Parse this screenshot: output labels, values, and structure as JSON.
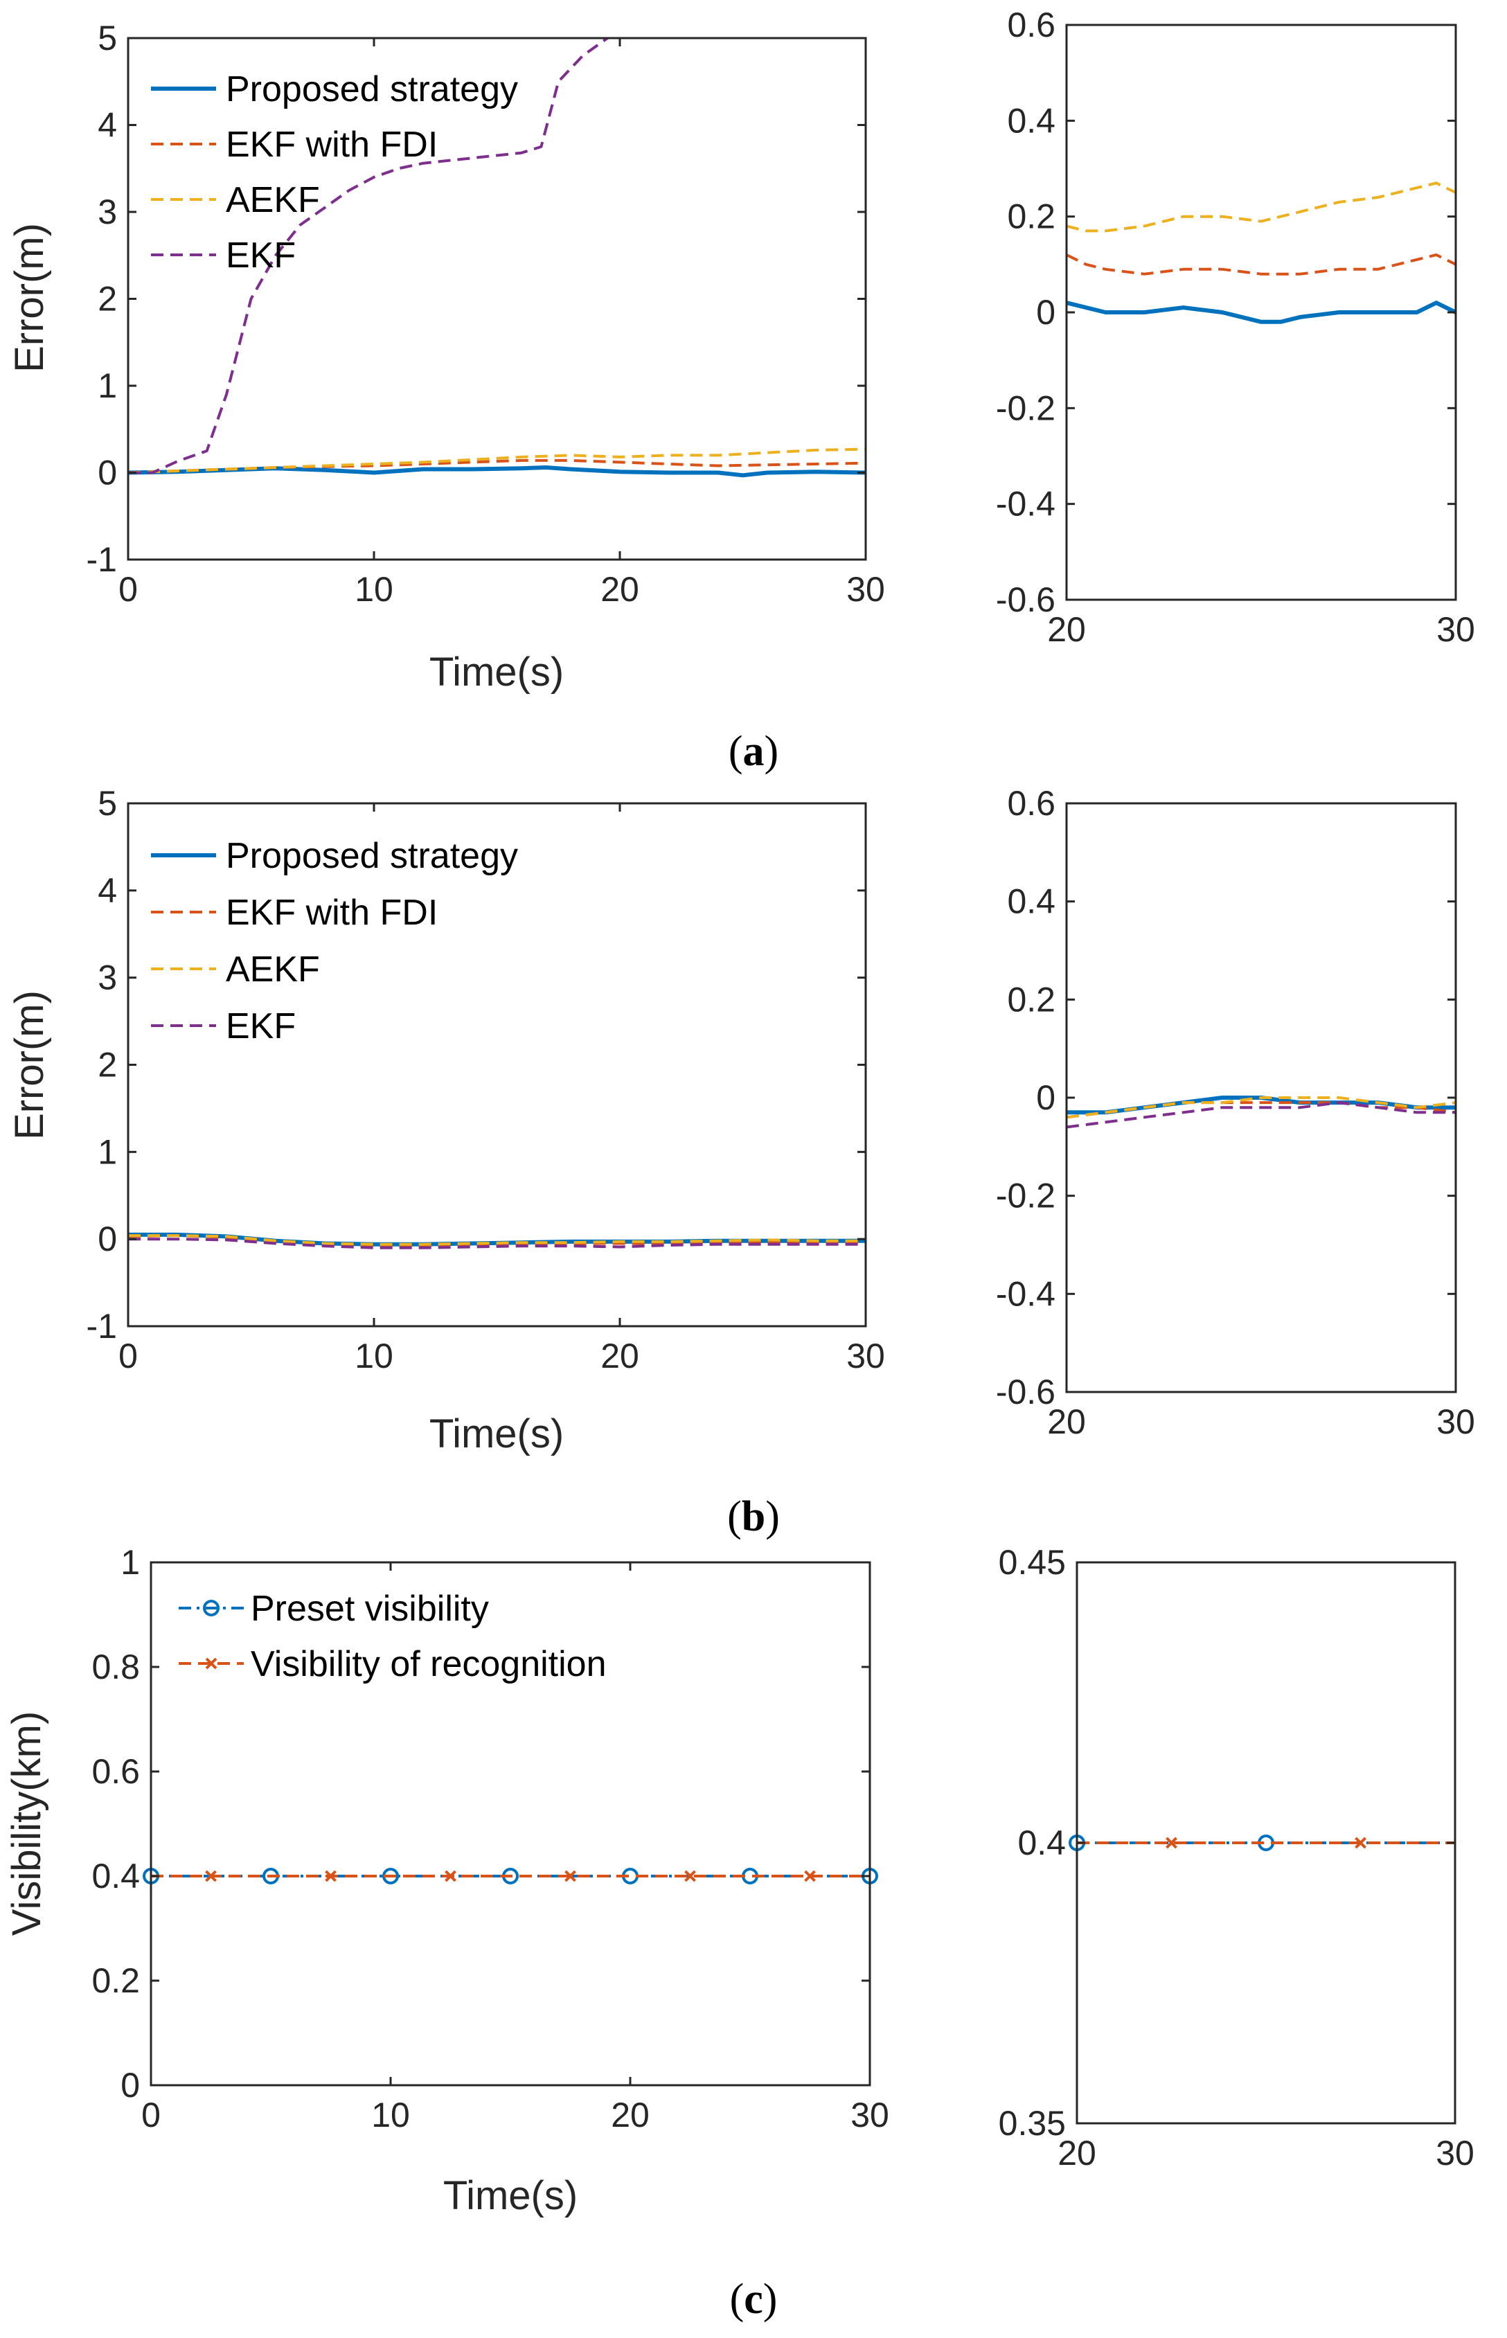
{
  "colors": {
    "proposed": "#0072BD",
    "ekf_fdi": "#D95319",
    "aekf": "#EDB120",
    "ekf": "#7E2F8E",
    "axes": "#262626"
  },
  "legend": {
    "proposed": "Proposed strategy",
    "ekf_fdi": "EKF with FDI",
    "aekf": "AEKF",
    "ekf": "EKF",
    "preset": "Preset visibility",
    "recognition": "Visibility of recognition"
  },
  "captions": {
    "a": [
      "(",
      "a",
      ")"
    ],
    "b": [
      "(",
      "b",
      ")"
    ],
    "c": [
      "(",
      "c",
      ")"
    ]
  },
  "chart_data": [
    {
      "id": "a-main",
      "type": "line",
      "xlabel": "Time(s)",
      "ylabel": "Error(m)",
      "xlim": [
        0,
        30
      ],
      "ylim": [
        -1,
        5
      ],
      "xticks": [
        0,
        10,
        20,
        30
      ],
      "yticks": [
        -1,
        0,
        1,
        2,
        3,
        4,
        5
      ],
      "xtick_labels": [
        "0",
        "10",
        "20",
        "30"
      ],
      "ytick_labels": [
        "-1",
        "0",
        "1",
        "2",
        "3",
        "4",
        "5"
      ],
      "legend": "top-left",
      "series": [
        {
          "name": "Proposed strategy",
          "key": "proposed",
          "style": "solid",
          "x": [
            0,
            2,
            4,
            6,
            8,
            10,
            12,
            14,
            16,
            17,
            18,
            20,
            22,
            24,
            25,
            26,
            28,
            30
          ],
          "y": [
            0,
            0.01,
            0.03,
            0.05,
            0.03,
            0.0,
            0.04,
            0.04,
            0.05,
            0.06,
            0.04,
            0.01,
            0.0,
            0.0,
            -0.03,
            0.0,
            0.01,
            0.0
          ]
        },
        {
          "name": "EKF with FDI",
          "key": "ekf_fdi",
          "style": "dash",
          "x": [
            0,
            2,
            4,
            6,
            8,
            10,
            12,
            14,
            16,
            18,
            20,
            22,
            24,
            26,
            28,
            30
          ],
          "y": [
            0,
            0.02,
            0.04,
            0.06,
            0.07,
            0.08,
            0.1,
            0.12,
            0.14,
            0.14,
            0.12,
            0.1,
            0.08,
            0.09,
            0.1,
            0.11
          ]
        },
        {
          "name": "AEKF",
          "key": "aekf",
          "style": "dash",
          "x": [
            0,
            2,
            4,
            6,
            8,
            10,
            12,
            14,
            16,
            18,
            20,
            22,
            24,
            26,
            28,
            30
          ],
          "y": [
            0,
            0.02,
            0.04,
            0.06,
            0.08,
            0.1,
            0.12,
            0.15,
            0.18,
            0.2,
            0.18,
            0.2,
            0.2,
            0.23,
            0.26,
            0.27
          ]
        },
        {
          "name": "EKF",
          "key": "ekf",
          "style": "dash",
          "x": [
            0,
            1,
            2,
            3.2,
            4,
            5,
            6,
            7,
            8,
            9,
            10,
            11,
            12,
            14,
            16,
            16.8,
            17.5,
            18.5,
            19.5
          ],
          "y": [
            0,
            0.0,
            0.13,
            0.25,
            0.9,
            2.0,
            2.5,
            2.85,
            3.05,
            3.25,
            3.4,
            3.5,
            3.56,
            3.62,
            3.68,
            3.75,
            4.5,
            4.8,
            5.0
          ]
        }
      ]
    },
    {
      "id": "a-zoom",
      "type": "line",
      "xlim": [
        20,
        30
      ],
      "ylim": [
        -0.6,
        0.6
      ],
      "xticks": [
        20,
        30
      ],
      "yticks": [
        -0.6,
        -0.4,
        -0.2,
        0,
        0.2,
        0.4,
        0.6
      ],
      "xtick_labels": [
        "20",
        "30"
      ],
      "ytick_labels": [
        "-0.6",
        "-0.4",
        "-0.2",
        "0",
        "0.2",
        "0.4",
        "0.6"
      ],
      "series": [
        {
          "name": "Proposed strategy",
          "key": "proposed",
          "style": "solid",
          "x": [
            20,
            20.5,
            21,
            22,
            23,
            24,
            25,
            25.5,
            26,
            27,
            28,
            29,
            29.5,
            30
          ],
          "y": [
            0.02,
            0.01,
            0.0,
            0.0,
            0.01,
            0.0,
            -0.02,
            -0.02,
            -0.01,
            0.0,
            0.0,
            0.0,
            0.02,
            0.0
          ]
        },
        {
          "name": "EKF with FDI",
          "key": "ekf_fdi",
          "style": "dash",
          "x": [
            20,
            20.5,
            21,
            22,
            23,
            24,
            25,
            26,
            27,
            28,
            29,
            29.5,
            30
          ],
          "y": [
            0.12,
            0.1,
            0.09,
            0.08,
            0.09,
            0.09,
            0.08,
            0.08,
            0.09,
            0.09,
            0.11,
            0.12,
            0.1
          ]
        },
        {
          "name": "AEKF",
          "key": "aekf",
          "style": "dash",
          "x": [
            20,
            20.5,
            21,
            22,
            23,
            24,
            25,
            26,
            27,
            28,
            29,
            29.5,
            30
          ],
          "y": [
            0.18,
            0.17,
            0.17,
            0.18,
            0.2,
            0.2,
            0.19,
            0.21,
            0.23,
            0.24,
            0.26,
            0.27,
            0.25
          ]
        }
      ]
    },
    {
      "id": "b-main",
      "type": "line",
      "xlabel": "Time(s)",
      "ylabel": "Error(m)",
      "xlim": [
        0,
        30
      ],
      "ylim": [
        -1,
        5
      ],
      "xticks": [
        0,
        10,
        20,
        30
      ],
      "yticks": [
        -1,
        0,
        1,
        2,
        3,
        4,
        5
      ],
      "xtick_labels": [
        "0",
        "10",
        "20",
        "30"
      ],
      "ytick_labels": [
        "-1",
        "0",
        "1",
        "2",
        "3",
        "4",
        "5"
      ],
      "legend": "top-left",
      "series": [
        {
          "name": "Proposed strategy",
          "key": "proposed",
          "style": "solid",
          "x": [
            0,
            2,
            4,
            6,
            8,
            10,
            12,
            14,
            16,
            18,
            20,
            22,
            24,
            26,
            28,
            30
          ],
          "y": [
            0.05,
            0.05,
            0.03,
            -0.02,
            -0.05,
            -0.06,
            -0.06,
            -0.05,
            -0.04,
            -0.03,
            -0.03,
            -0.03,
            -0.02,
            -0.02,
            -0.02,
            -0.02
          ]
        },
        {
          "name": "EKF with FDI",
          "key": "ekf_fdi",
          "style": "dash",
          "x": [
            0,
            2,
            4,
            6,
            8,
            10,
            12,
            14,
            16,
            18,
            20,
            22,
            24,
            26,
            28,
            30
          ],
          "y": [
            0.03,
            0.04,
            0.02,
            -0.03,
            -0.06,
            -0.07,
            -0.07,
            -0.06,
            -0.05,
            -0.05,
            -0.05,
            -0.05,
            -0.04,
            -0.04,
            -0.04,
            -0.04
          ]
        },
        {
          "name": "AEKF",
          "key": "aekf",
          "style": "dash",
          "x": [
            0,
            2,
            4,
            6,
            8,
            10,
            12,
            14,
            16,
            18,
            20,
            22,
            24,
            26,
            28,
            30
          ],
          "y": [
            0.04,
            0.04,
            0.03,
            -0.02,
            -0.05,
            -0.06,
            -0.06,
            -0.05,
            -0.04,
            -0.04,
            -0.03,
            -0.03,
            -0.02,
            -0.01,
            -0.02,
            -0.02
          ]
        },
        {
          "name": "EKF",
          "key": "ekf",
          "style": "dash",
          "x": [
            0,
            2,
            4,
            6,
            8,
            10,
            12,
            14,
            16,
            18,
            20,
            22,
            24,
            26,
            28,
            30
          ],
          "y": [
            0.0,
            0.0,
            -0.01,
            -0.05,
            -0.08,
            -0.1,
            -0.1,
            -0.09,
            -0.08,
            -0.08,
            -0.09,
            -0.07,
            -0.06,
            -0.06,
            -0.06,
            -0.06
          ]
        }
      ]
    },
    {
      "id": "b-zoom",
      "type": "line",
      "xlim": [
        20,
        30
      ],
      "ylim": [
        -0.6,
        0.6
      ],
      "xticks": [
        20,
        30
      ],
      "yticks": [
        -0.6,
        -0.4,
        -0.2,
        0,
        0.2,
        0.4,
        0.6
      ],
      "xtick_labels": [
        "20",
        "30"
      ],
      "ytick_labels": [
        "-0.6",
        "-0.4",
        "-0.2",
        "0",
        "0.2",
        "0.4",
        "0.6"
      ],
      "series": [
        {
          "name": "Proposed strategy",
          "key": "proposed",
          "style": "solid",
          "x": [
            20,
            21,
            22,
            23,
            24,
            25,
            26,
            27,
            28,
            29,
            30
          ],
          "y": [
            -0.03,
            -0.03,
            -0.02,
            -0.01,
            0.0,
            0.0,
            -0.01,
            -0.01,
            -0.01,
            -0.02,
            -0.02
          ]
        },
        {
          "name": "EKF with FDI",
          "key": "ekf_fdi",
          "style": "dash",
          "x": [
            20,
            21,
            22,
            23,
            24,
            25,
            26,
            27,
            28,
            29,
            30
          ],
          "y": [
            -0.04,
            -0.03,
            -0.02,
            -0.01,
            -0.01,
            -0.01,
            -0.01,
            -0.01,
            -0.02,
            -0.02,
            -0.03
          ]
        },
        {
          "name": "AEKF",
          "key": "aekf",
          "style": "dash",
          "x": [
            20,
            21,
            22,
            23,
            24,
            25,
            26,
            27,
            28,
            29,
            30
          ],
          "y": [
            -0.04,
            -0.03,
            -0.02,
            -0.01,
            -0.01,
            0.0,
            0.0,
            0.0,
            -0.01,
            -0.02,
            -0.01
          ]
        },
        {
          "name": "EKF",
          "key": "ekf",
          "style": "dash",
          "x": [
            20,
            21,
            22,
            23,
            24,
            25,
            26,
            27,
            28,
            29,
            30
          ],
          "y": [
            -0.06,
            -0.05,
            -0.04,
            -0.03,
            -0.02,
            -0.02,
            -0.02,
            -0.01,
            -0.02,
            -0.03,
            -0.03
          ]
        }
      ]
    },
    {
      "id": "c-main",
      "type": "line",
      "xlabel": "Time(s)",
      "ylabel": "Visibility(km)",
      "xlim": [
        0,
        30
      ],
      "ylim": [
        0,
        1
      ],
      "xticks": [
        0,
        10,
        20,
        30
      ],
      "yticks": [
        0,
        0.2,
        0.4,
        0.6,
        0.8,
        1
      ],
      "xtick_labels": [
        "0",
        "10",
        "20",
        "30"
      ],
      "ytick_labels": [
        "0",
        "0.2",
        "0.4",
        "0.6",
        "0.8",
        "1"
      ],
      "legend": "top-left",
      "series": [
        {
          "name": "Preset visibility",
          "key": "preset",
          "color_key": "proposed",
          "style": "dashdot",
          "marker": "circle",
          "x": [
            0,
            5,
            10,
            15,
            20,
            25,
            30
          ],
          "y": [
            0.4,
            0.4,
            0.4,
            0.4,
            0.4,
            0.4,
            0.4
          ]
        },
        {
          "name": "Visibility of recognition",
          "key": "recognition",
          "color_key": "ekf_fdi",
          "style": "dash",
          "marker": "x",
          "x": [
            0,
            2.5,
            7.5,
            12.5,
            17.5,
            22.5,
            27.5,
            30
          ],
          "y": [
            0.4,
            0.4,
            0.4,
            0.4,
            0.4,
            0.4,
            0.4,
            0.4
          ],
          "marker_x": [
            2.5,
            7.5,
            12.5,
            17.5,
            22.5,
            27.5
          ]
        }
      ]
    },
    {
      "id": "c-zoom",
      "type": "line",
      "xlim": [
        20,
        30
      ],
      "ylim": [
        0.35,
        0.45
      ],
      "xticks": [
        20,
        30
      ],
      "yticks": [
        0.35,
        0.4,
        0.45
      ],
      "xtick_labels": [
        "20",
        "30"
      ],
      "ytick_labels": [
        "0.35",
        "0.4",
        "0.45"
      ],
      "series": [
        {
          "name": "Preset visibility",
          "key": "preset",
          "color_key": "proposed",
          "style": "dashdot",
          "marker": "circle",
          "x": [
            20,
            25,
            30
          ],
          "y": [
            0.4,
            0.4,
            0.4
          ],
          "marker_x": [
            20,
            25
          ]
        },
        {
          "name": "Visibility of recognition",
          "key": "recognition",
          "color_key": "ekf_fdi",
          "style": "dash",
          "marker": "x",
          "x": [
            20,
            22.5,
            27.5,
            30
          ],
          "y": [
            0.4,
            0.4,
            0.4,
            0.4
          ],
          "marker_x": [
            22.5,
            27.5
          ]
        }
      ]
    }
  ]
}
